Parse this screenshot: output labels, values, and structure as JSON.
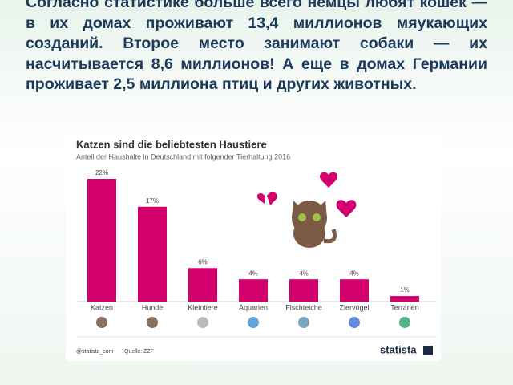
{
  "slide_text": "Согласно статистике больше всего немцы любят кошек — в их домах проживают 13,4 миллионов мяукающих созданий. Второе место занимают собаки — их насчитывается 8,6 миллионов! А еще в домах Германии проживает 2,5 миллиона птиц и других животных.",
  "chart_data": {
    "type": "bar",
    "title": "Katzen sind die beliebtesten Haustiere",
    "subtitle": "Anteil der Haushalte in Deutschland mit folgender Tierhaltung 2016",
    "categories": [
      "Katzen",
      "Hunde",
      "Kleintiere",
      "Aquarien",
      "Fischteiche",
      "Ziervögel",
      "Terrarien"
    ],
    "values": [
      22,
      17,
      6,
      4,
      4,
      4,
      1
    ],
    "value_labels": [
      "22%",
      "17%",
      "6%",
      "4%",
      "4%",
      "4%",
      "1%"
    ],
    "color": "#d4006e",
    "handle": "@statista_com",
    "source": "Quelle: ZZF",
    "brand": "statista"
  }
}
